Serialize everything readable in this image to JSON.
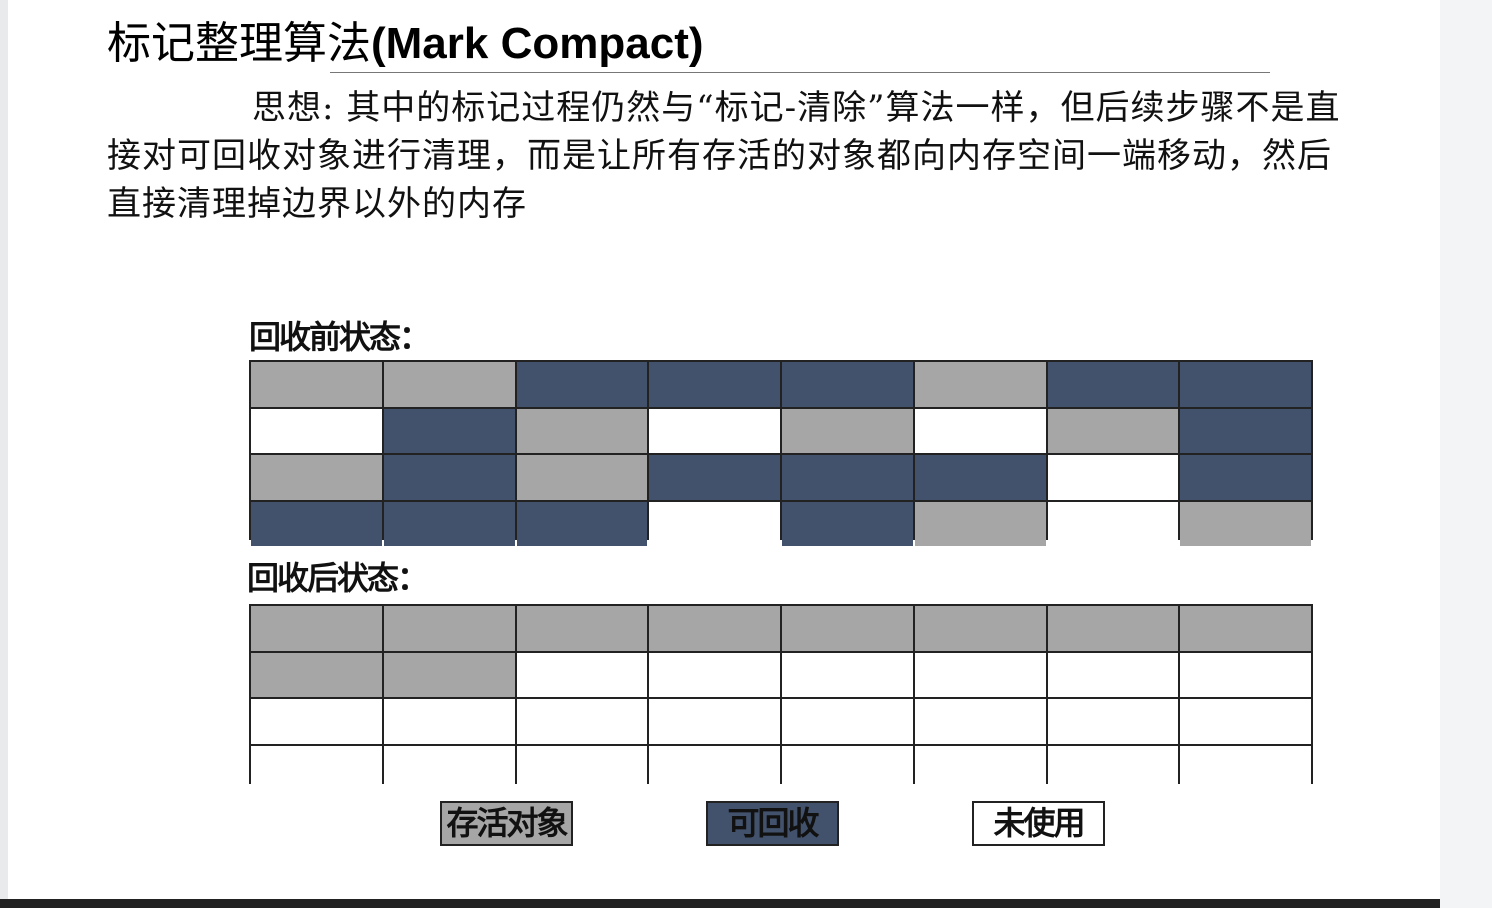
{
  "title": {
    "cn": "标记整理算法",
    "en": "(Mark Compact)"
  },
  "body": "思想: 其中的标记过程仍然与“标记-清除”算法一样，但后续步骤不是直接对可回收对象进行清理，而是让所有存活的对象都向内存空间一端移动，然后直接清理掉边界以外的内存",
  "colors": {
    "live": "#a6a6a6",
    "reclaimable": "#42526c",
    "unused": "#ffffff"
  },
  "before": {
    "label": "回收前状态：",
    "rows": [
      [
        "live",
        "live",
        "reclaimable",
        "reclaimable",
        "reclaimable",
        "live",
        "reclaimable",
        "reclaimable"
      ],
      [
        "unused",
        "reclaimable",
        "live",
        "unused",
        "live",
        "unused",
        "live",
        "reclaimable"
      ],
      [
        "live",
        "reclaimable",
        "live",
        "reclaimable",
        "reclaimable",
        "reclaimable",
        "unused",
        "reclaimable"
      ],
      [
        "reclaimable",
        "reclaimable",
        "reclaimable",
        "unused",
        "reclaimable",
        "live",
        "unused",
        "live"
      ]
    ]
  },
  "after": {
    "label": "回收后状态：",
    "rows": [
      [
        "live",
        "live",
        "live",
        "live",
        "live",
        "live",
        "live",
        "live"
      ],
      [
        "live",
        "live",
        "unused",
        "unused",
        "unused",
        "unused",
        "unused",
        "unused"
      ],
      [
        "unused",
        "unused",
        "unused",
        "unused",
        "unused",
        "unused",
        "unused",
        "unused"
      ],
      [
        "unused",
        "unused",
        "unused",
        "unused",
        "unused",
        "unused",
        "unused",
        "unused"
      ]
    ]
  },
  "legend": {
    "live": "存活对象",
    "reclaimable": "可回收",
    "unused": "未使用"
  }
}
